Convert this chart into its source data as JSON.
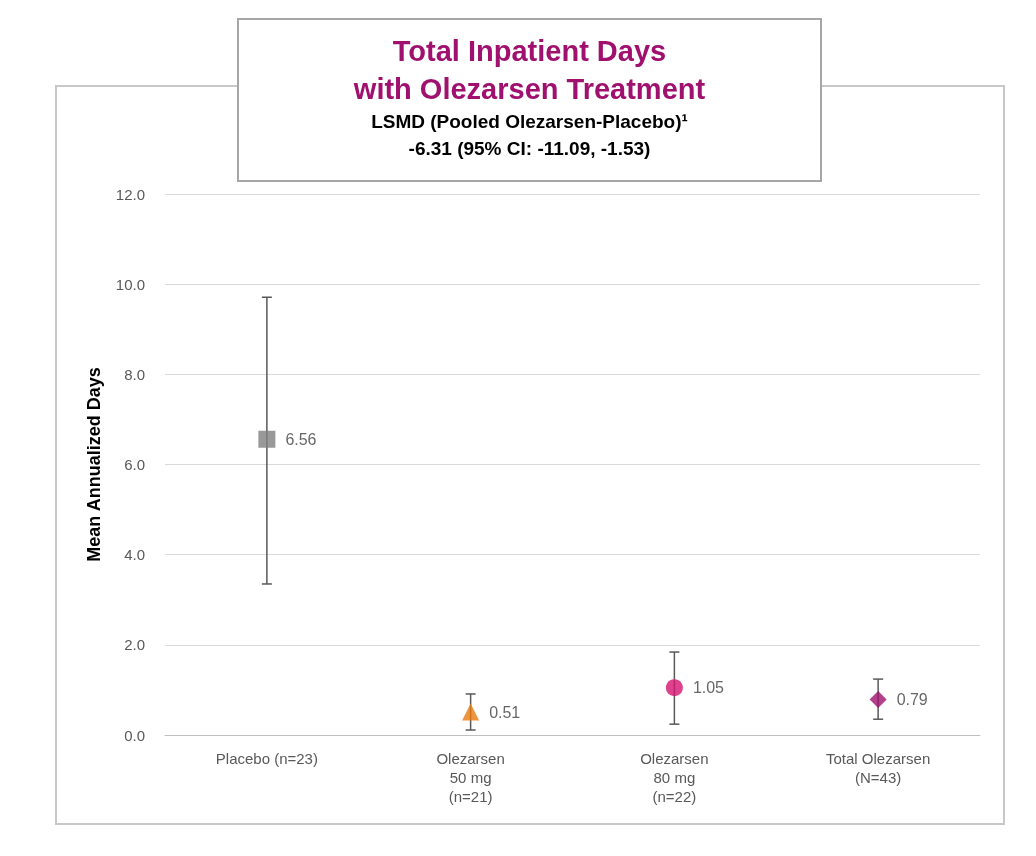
{
  "chart_data": {
    "type": "scatter",
    "title": "Total Inpatient Days\nwith Olezarsen Treatment",
    "subtitle": "LSMD (Pooled Olezarsen-Placebo)¹\n-6.31 (95% CI: -11.09, -1.53)",
    "ylabel": "Mean Annualized Days",
    "categories": [
      "Placebo (n=23)",
      "Olezarsen\n50 mg\n(n=21)",
      "Olezarsen\n80 mg\n(n=22)",
      "Total Olezarsen\n(N=43)"
    ],
    "series": [
      {
        "color": "#7f7f7f",
        "marker": "square",
        "values": [
          6.56,
          null,
          null,
          null
        ],
        "errors": [
          [
            3.35,
            9.71
          ],
          null,
          null,
          null
        ]
      },
      {
        "color": "#e8790f",
        "marker": "triangle",
        "values": [
          null,
          0.51,
          null,
          null
        ],
        "errors": [
          null,
          [
            0.11,
            0.91
          ],
          null,
          null
        ]
      },
      {
        "color": "#d6136f",
        "marker": "circle",
        "values": [
          null,
          null,
          1.05,
          null
        ],
        "errors": [
          null,
          null,
          [
            0.24,
            1.84
          ],
          null
        ]
      },
      {
        "color": "#a0106e",
        "marker": "diamond",
        "values": [
          null,
          null,
          null,
          0.79
        ],
        "errors": [
          null,
          null,
          null,
          [
            0.35,
            1.24
          ]
        ]
      }
    ],
    "ylim": [
      0,
      12
    ],
    "yticks": [
      {
        "value": 0,
        "label": "0.0"
      },
      {
        "value": 2,
        "label": "2.0"
      },
      {
        "value": 4,
        "label": "4.0"
      },
      {
        "value": 6,
        "label": "6.0"
      },
      {
        "value": 8,
        "label": "8.0"
      },
      {
        "value": 10,
        "label": "10.0"
      },
      {
        "value": 12,
        "label": "12.0"
      }
    ],
    "grid": "y",
    "data_labels": true
  }
}
